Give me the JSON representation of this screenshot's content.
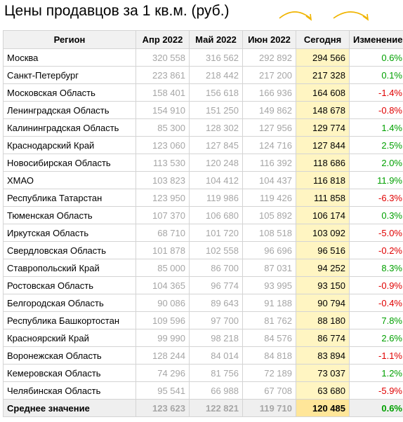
{
  "title": "Цены продавцов за 1 кв.м. (руб.)",
  "colors": {
    "arrow": "#f0b400",
    "positive": "#00a000",
    "negative": "#e00000",
    "highlight": "#fff5c2"
  },
  "headers": {
    "region": "Регион",
    "apr": "Апр 2022",
    "may": "Май 2022",
    "jun": "Июн 2022",
    "today": "Сегодня",
    "change": "Изменение"
  },
  "rows": [
    {
      "region": "Москва",
      "apr": "320 558",
      "may": "316 562",
      "jun": "292 892",
      "today": "294 566",
      "change": "0.6%",
      "sign": "pos"
    },
    {
      "region": "Санкт-Петербург",
      "apr": "223 861",
      "may": "218 442",
      "jun": "217 200",
      "today": "217 328",
      "change": "0.1%",
      "sign": "pos"
    },
    {
      "region": "Московская Область",
      "apr": "158 401",
      "may": "156 618",
      "jun": "166 936",
      "today": "164 608",
      "change": "-1.4%",
      "sign": "neg"
    },
    {
      "region": "Ленинградская Область",
      "apr": "154 910",
      "may": "151 250",
      "jun": "149 862",
      "today": "148 678",
      "change": "-0.8%",
      "sign": "neg"
    },
    {
      "region": "Калининградская Область",
      "apr": "85 300",
      "may": "128 302",
      "jun": "127 956",
      "today": "129 774",
      "change": "1.4%",
      "sign": "pos"
    },
    {
      "region": "Краснодарский Край",
      "apr": "123 060",
      "may": "127 845",
      "jun": "124 716",
      "today": "127 844",
      "change": "2.5%",
      "sign": "pos"
    },
    {
      "region": "Новосибирская Область",
      "apr": "113 530",
      "may": "120 248",
      "jun": "116 392",
      "today": "118 686",
      "change": "2.0%",
      "sign": "pos"
    },
    {
      "region": "ХМАО",
      "apr": "103 823",
      "may": "104 412",
      "jun": "104 437",
      "today": "116 818",
      "change": "11.9%",
      "sign": "pos"
    },
    {
      "region": "Республика Татарстан",
      "apr": "123 950",
      "may": "119 986",
      "jun": "119 426",
      "today": "111 858",
      "change": "-6.3%",
      "sign": "neg"
    },
    {
      "region": "Тюменская Область",
      "apr": "107 370",
      "may": "106 680",
      "jun": "105 892",
      "today": "106 174",
      "change": "0.3%",
      "sign": "pos"
    },
    {
      "region": "Иркутская Область",
      "apr": "68 710",
      "may": "101 720",
      "jun": "108 518",
      "today": "103 092",
      "change": "-5.0%",
      "sign": "neg"
    },
    {
      "region": "Свердловская Область",
      "apr": "101 878",
      "may": "102 558",
      "jun": "96 696",
      "today": "96 516",
      "change": "-0.2%",
      "sign": "neg"
    },
    {
      "region": "Ставропольский Край",
      "apr": "85 000",
      "may": "86 700",
      "jun": "87 031",
      "today": "94 252",
      "change": "8.3%",
      "sign": "pos"
    },
    {
      "region": "Ростовская Область",
      "apr": "104 365",
      "may": "96 774",
      "jun": "93 995",
      "today": "93 150",
      "change": "-0.9%",
      "sign": "neg"
    },
    {
      "region": "Белгородская Область",
      "apr": "90 086",
      "may": "89 643",
      "jun": "91 188",
      "today": "90 794",
      "change": "-0.4%",
      "sign": "neg"
    },
    {
      "region": "Республика Башкортостан",
      "apr": "109 596",
      "may": "97 700",
      "jun": "81 762",
      "today": "88 180",
      "change": "7.8%",
      "sign": "pos"
    },
    {
      "region": "Красноярский Край",
      "apr": "99 990",
      "may": "98 218",
      "jun": "84 576",
      "today": "86 774",
      "change": "2.6%",
      "sign": "pos"
    },
    {
      "region": "Воронежская Область",
      "apr": "128 244",
      "may": "84 014",
      "jun": "84 818",
      "today": "83 894",
      "change": "-1.1%",
      "sign": "neg"
    },
    {
      "region": "Кемеровская Область",
      "apr": "74 296",
      "may": "81 756",
      "jun": "72 189",
      "today": "73 037",
      "change": "1.2%",
      "sign": "pos"
    },
    {
      "region": "Челябинская Область",
      "apr": "95 541",
      "may": "66 988",
      "jun": "67 708",
      "today": "63 680",
      "change": "-5.9%",
      "sign": "neg"
    }
  ],
  "average": {
    "label": "Среднее значение",
    "apr": "123 623",
    "may": "122 821",
    "jun": "119 710",
    "today": "120 485",
    "change": "0.6%",
    "sign": "pos"
  }
}
